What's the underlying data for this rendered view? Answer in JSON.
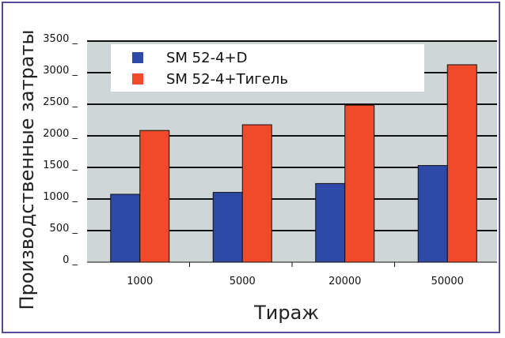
{
  "chart_data": {
    "type": "bar",
    "categories": [
      "1000",
      "5000",
      "20000",
      "50000"
    ],
    "series": [
      {
        "name": "SM 52-4+D",
        "values": [
          1075,
          1105,
          1245,
          1530
        ],
        "color": "#2e4aa6"
      },
      {
        "name": "SM 52-4+Тигель",
        "values": [
          2085,
          2175,
          2485,
          3125
        ],
        "color": "#f04a2a"
      }
    ],
    "xlabel": "Тираж",
    "ylabel": "Производственные затраты",
    "ylim": [
      0,
      3500
    ],
    "yticks": [
      "0",
      "500",
      "1000",
      "1500",
      "2000",
      "2500",
      "3000",
      "3500"
    ],
    "grid": true,
    "legend_position": "top",
    "plot_background": "#cfd6d8"
  }
}
